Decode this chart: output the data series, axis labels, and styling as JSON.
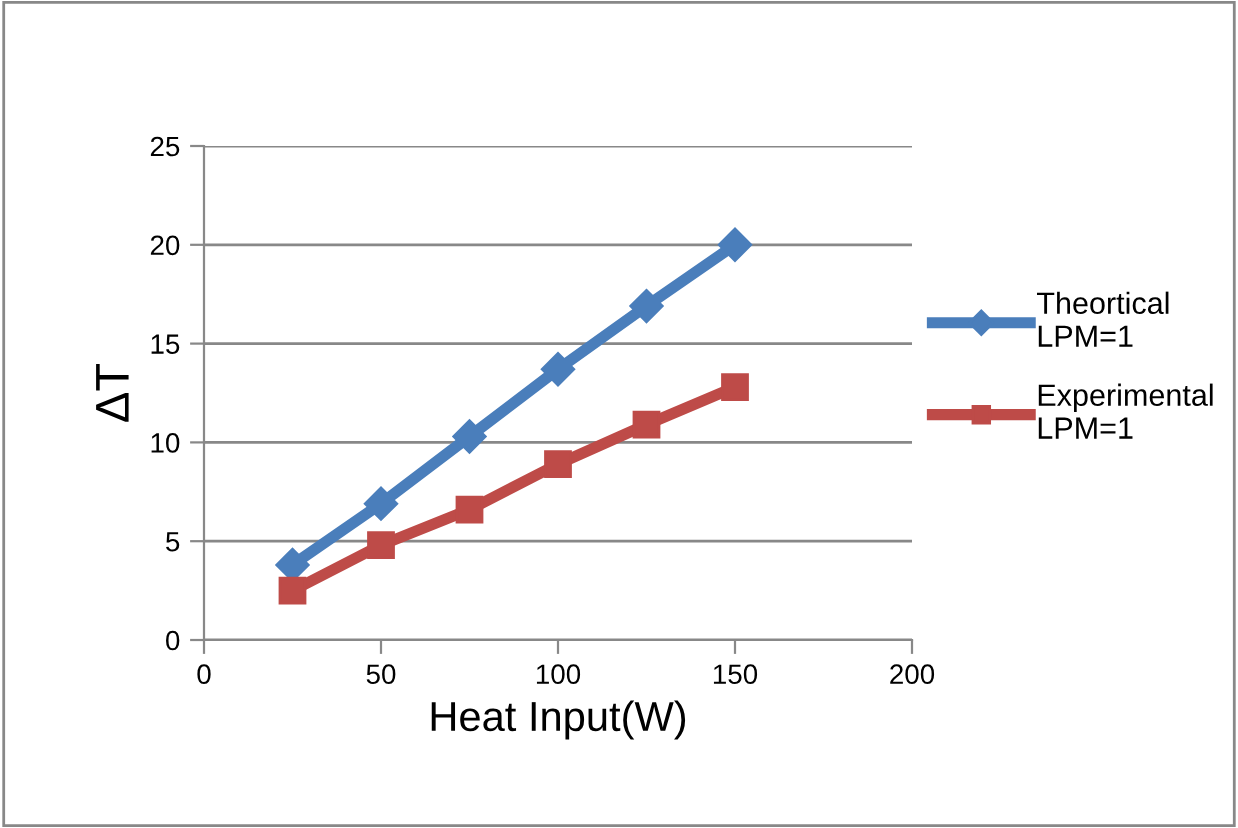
{
  "chart_data": {
    "type": "line",
    "xlabel": "Heat Input(W)",
    "ylabel": "ΔT",
    "x": [
      25,
      50,
      75,
      100,
      125,
      150
    ],
    "series": [
      {
        "name": "Theortical\nLPM=1",
        "color": "#4a7ebb",
        "marker": "diamond",
        "values": [
          3.8,
          6.9,
          10.3,
          13.7,
          16.9,
          20.0
        ]
      },
      {
        "name": "Experimental\nLPM=1",
        "color": "#be4b48",
        "marker": "square",
        "values": [
          2.5,
          4.8,
          6.6,
          8.9,
          10.9,
          12.8
        ]
      }
    ],
    "xlim": [
      0,
      200
    ],
    "xticks": [
      0,
      50,
      100,
      150,
      200
    ],
    "ylim": [
      0,
      25
    ],
    "yticks": [
      0,
      5,
      10,
      15,
      20,
      25
    ],
    "grid": "y",
    "legend": "right",
    "line_style": "solid"
  }
}
